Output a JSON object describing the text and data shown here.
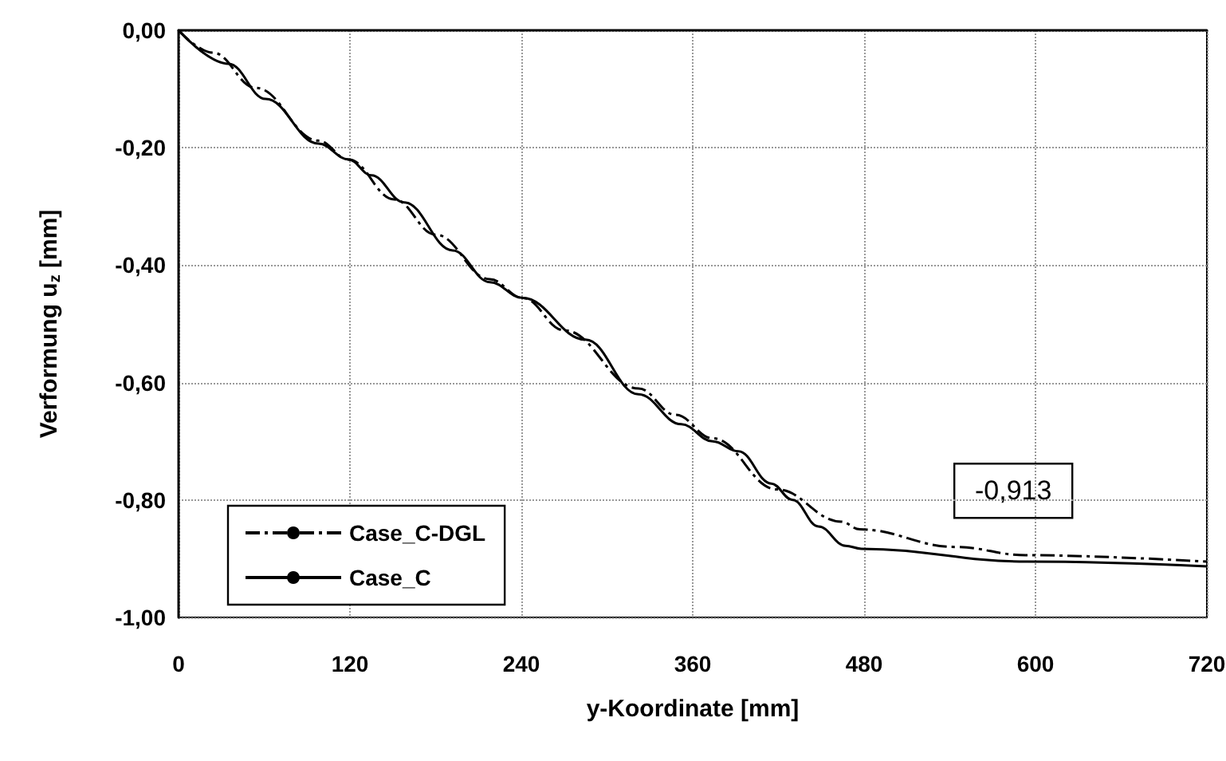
{
  "chart_data": {
    "type": "line",
    "xlabel": "y-Koordinate [mm]",
    "ylabel": "Verformung u$_{z}$ [mm]",
    "xlim": [
      0,
      720
    ],
    "xticks": [
      0,
      120,
      240,
      360,
      480,
      600,
      720
    ],
    "ylim": [
      -1,
      0
    ],
    "yticks": [
      {
        "value": -1,
        "label": "-1,00"
      },
      {
        "value": -0.8,
        "label": "-0,80"
      },
      {
        "value": -0.6,
        "label": "-0,60"
      },
      {
        "value": -0.4,
        "label": "-0,40"
      },
      {
        "value": -0.2,
        "label": "-0,20"
      },
      {
        "value": 0,
        "label": "0,00"
      }
    ],
    "grid": true,
    "legend": "bottom left",
    "marker": "none",
    "annotations": [
      "-0,913"
    ],
    "series": [
      {
        "name": "Case_C-DGL",
        "color": "#000000",
        "line_style": "dashdot",
        "x": [
          0,
          24,
          54,
          98,
          119,
          151,
          180,
          218,
          241,
          270,
          322,
          348,
          374,
          419,
          464,
          477,
          544,
          593,
          720
        ],
        "values": [
          0,
          -0.038,
          -0.098,
          -0.188,
          -0.22,
          -0.288,
          -0.348,
          -0.424,
          -0.456,
          -0.511,
          -0.61,
          -0.655,
          -0.695,
          -0.782,
          -0.837,
          -0.85,
          -0.88,
          -0.894,
          -0.905
        ]
      },
      {
        "name": "Case_C",
        "color": "#000000",
        "line_style": "solid",
        "x": [
          0,
          35,
          61,
          98,
          119,
          135,
          158,
          192,
          218,
          241,
          285,
          322,
          352,
          374,
          392,
          415,
          430,
          448,
          467,
          478,
          594,
          720
        ],
        "values": [
          0,
          -0.057,
          -0.117,
          -0.193,
          -0.22,
          -0.247,
          -0.293,
          -0.375,
          -0.429,
          -0.456,
          -0.527,
          -0.62,
          -0.671,
          -0.7,
          -0.717,
          -0.772,
          -0.8,
          -0.845,
          -0.878,
          -0.883,
          -0.905,
          -0.913
        ]
      }
    ]
  }
}
